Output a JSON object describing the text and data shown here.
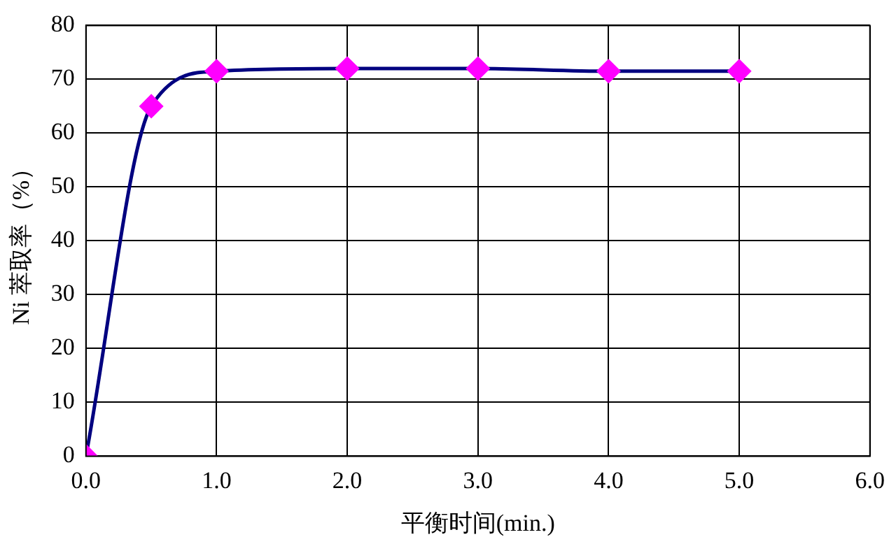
{
  "chart_data": {
    "type": "line",
    "xlabel": "平衡时间(min.)",
    "ylabel": "Ni 萃取率（%）",
    "x": [
      0,
      0.5,
      1.0,
      2.0,
      3.0,
      4.0,
      5.0
    ],
    "series": [
      {
        "color": "#000080",
        "colors": [
          "#ff00ff",
          "#ff00ff",
          "#ff00ff",
          "#ff00ff",
          "#ff00ff",
          "#ff00ff",
          "#ff00ff"
        ],
        "values": [
          0,
          65,
          71.5,
          72,
          72,
          71.5,
          71.5
        ]
      }
    ],
    "xlim": [
      0,
      6
    ],
    "xticks": [
      {
        "value": 0,
        "label": "0.0"
      },
      {
        "value": 1,
        "label": "1.0"
      },
      {
        "value": 2,
        "label": "2.0"
      },
      {
        "value": 3,
        "label": "3.0"
      },
      {
        "value": 4,
        "label": "4.0"
      },
      {
        "value": 5,
        "label": "5.0"
      },
      {
        "value": 6,
        "label": "6.0"
      }
    ],
    "ylim": [
      0,
      80
    ],
    "yticks": [
      0,
      10,
      20,
      30,
      40,
      50,
      60,
      70,
      80
    ],
    "grid": true,
    "marker": "diamond",
    "line_style": "solid"
  }
}
